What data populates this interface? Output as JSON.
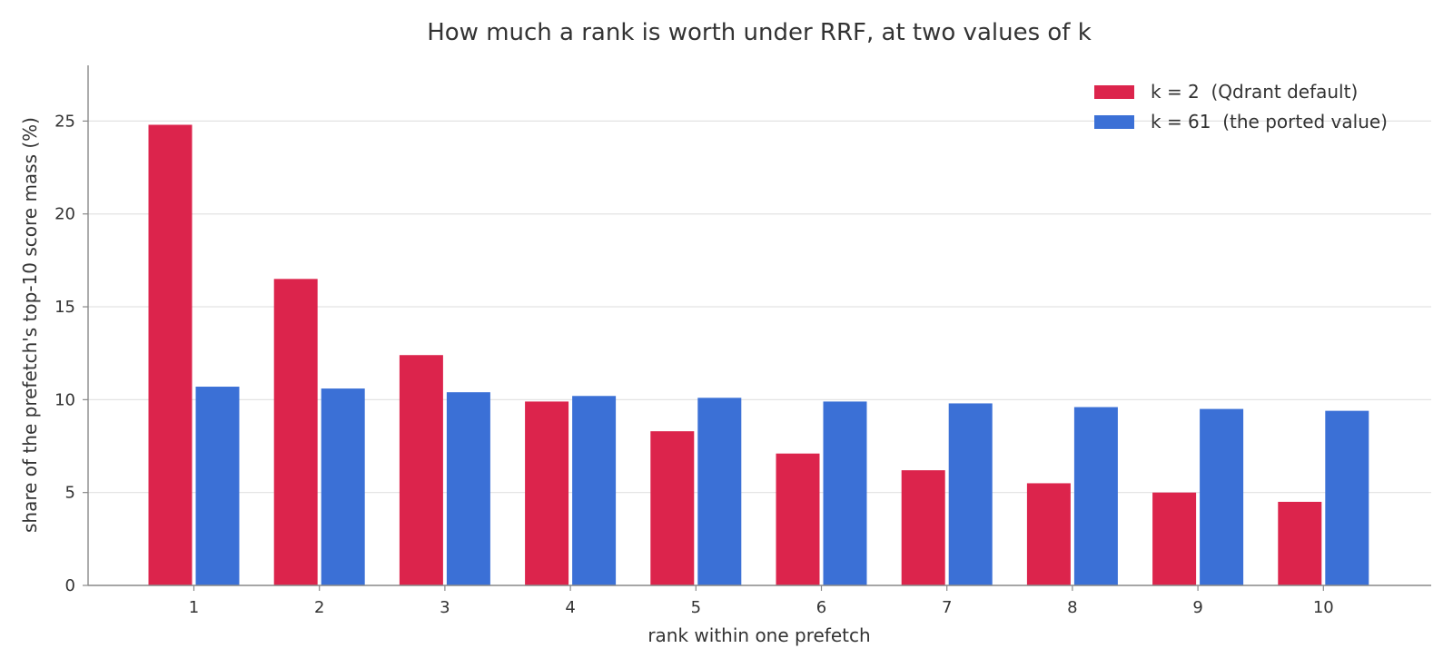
{
  "chart_data": {
    "type": "bar",
    "title": "How much a rank is worth under RRF, at two values of k",
    "xlabel": "rank within one prefetch",
    "ylabel": "share of the prefetch's top-10 score mass (%)",
    "categories": [
      "1",
      "2",
      "3",
      "4",
      "5",
      "6",
      "7",
      "8",
      "9",
      "10"
    ],
    "series": [
      {
        "name": "k = 2  (Qdrant default)",
        "color": "#dc244c",
        "values": [
          24.8,
          16.5,
          12.4,
          9.9,
          8.3,
          7.1,
          6.2,
          5.5,
          5.0,
          4.5
        ]
      },
      {
        "name": "k = 61  (the ported value)",
        "color": "#3b70d6",
        "values": [
          10.7,
          10.6,
          10.4,
          10.2,
          10.1,
          9.9,
          9.8,
          9.6,
          9.5,
          9.4
        ]
      }
    ],
    "ylim": [
      0,
      28
    ],
    "yticks": [
      0,
      5,
      10,
      15,
      20,
      25
    ],
    "grid": "horizontal",
    "legend_position": "top-right"
  }
}
